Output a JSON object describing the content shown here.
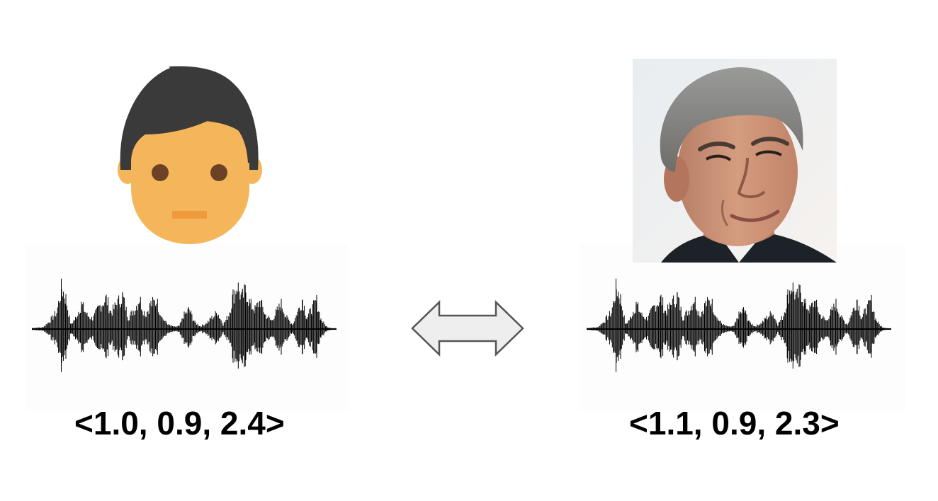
{
  "left": {
    "avatar_icon": "cartoon-man-avatar-icon",
    "waveform_icon": "audio-waveform-icon",
    "embedding": "<1.0, 0.9, 2.4>"
  },
  "right": {
    "photo_icon": "portrait-photo-gray-haired-man",
    "waveform_icon": "audio-waveform-icon",
    "embedding": "<1.1, 0.9, 2.3>"
  },
  "comparison_icon": "double-headed-arrow-icon",
  "colors": {
    "skin": "#F5B65B",
    "hair": "#3A3A3A",
    "eyes": "#6B4226",
    "mouth": "#F09A3E",
    "arrow_fill": "#EEEEEE",
    "arrow_stroke": "#555555",
    "waveform": "#000000"
  }
}
